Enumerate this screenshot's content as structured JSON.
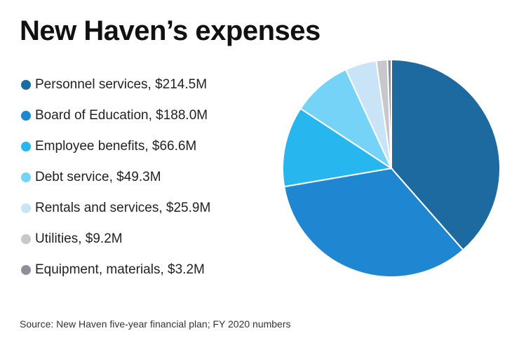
{
  "title": "New Haven’s expenses",
  "source": "Source: New Haven five-year financial plan; FY 2020 numbers",
  "chart_data": {
    "type": "pie",
    "title": "New Haven’s expenses",
    "slices": [
      {
        "label": "Personnel services, $214.5M",
        "value": 214.5,
        "color": "#1c6aa0"
      },
      {
        "label": "Board of Education, $188.0M",
        "value": 188.0,
        "color": "#1f87d2"
      },
      {
        "label": "Employee benefits, $66.6M",
        "value": 66.6,
        "color": "#27b6ee"
      },
      {
        "label": "Debt service, $49.3M",
        "value": 49.3,
        "color": "#74d3f7"
      },
      {
        "label": "Rentals and services, $25.9M",
        "value": 25.9,
        "color": "#c9e3f7"
      },
      {
        "label": "Utilities, $9.2M",
        "value": 9.2,
        "color": "#c8c8cc"
      },
      {
        "label": "Equipment, materials, $3.2M",
        "value": 3.2,
        "color": "#8f8f9c"
      }
    ],
    "start_angle": "12 o'clock, clockwise",
    "legend_position": "left"
  }
}
